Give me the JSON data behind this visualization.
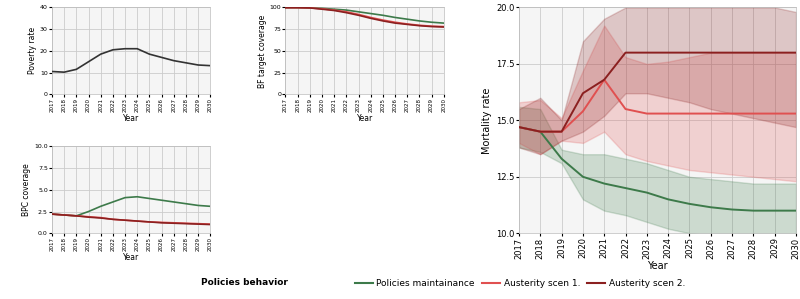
{
  "years": [
    2017,
    2018,
    2019,
    2020,
    2021,
    2022,
    2023,
    2024,
    2025,
    2026,
    2027,
    2028,
    2029,
    2030
  ],
  "poverty_rate": [
    10.5,
    10.2,
    11.5,
    15.0,
    18.5,
    20.5,
    21.0,
    21.0,
    18.5,
    17.0,
    15.5,
    14.5,
    13.5,
    13.2
  ],
  "bf_coverage_green": [
    99.8,
    99.8,
    99.5,
    99.0,
    98.0,
    97.0,
    95.0,
    93.0,
    91.0,
    88.5,
    86.5,
    84.5,
    83.0,
    82.0
  ],
  "bf_coverage_red1": [
    99.8,
    99.8,
    99.5,
    98.5,
    97.0,
    95.0,
    92.0,
    88.5,
    85.5,
    83.0,
    81.0,
    79.5,
    78.5,
    78.0
  ],
  "bf_coverage_red2": [
    99.8,
    99.8,
    99.5,
    98.0,
    96.5,
    94.0,
    91.0,
    87.5,
    84.5,
    82.0,
    80.5,
    79.0,
    78.0,
    77.5
  ],
  "bpc_green": [
    2.2,
    2.1,
    2.0,
    2.5,
    3.1,
    3.6,
    4.1,
    4.2,
    4.0,
    3.8,
    3.6,
    3.4,
    3.2,
    3.1
  ],
  "bpc_red1": [
    2.2,
    2.1,
    2.0,
    1.9,
    1.8,
    1.6,
    1.5,
    1.4,
    1.3,
    1.25,
    1.2,
    1.15,
    1.1,
    1.05
  ],
  "bpc_red2": [
    2.2,
    2.1,
    2.0,
    1.85,
    1.75,
    1.6,
    1.5,
    1.4,
    1.3,
    1.2,
    1.15,
    1.1,
    1.05,
    1.0
  ],
  "mort_green_mean": [
    14.7,
    14.5,
    13.3,
    12.5,
    12.2,
    12.0,
    11.8,
    11.5,
    11.3,
    11.15,
    11.05,
    11.0,
    11.0,
    11.0
  ],
  "mort_green_lo": [
    13.8,
    13.6,
    13.1,
    11.5,
    11.0,
    10.8,
    10.5,
    10.2,
    10.0,
    9.9,
    9.8,
    9.7,
    9.6,
    9.5
  ],
  "mort_green_hi": [
    15.6,
    15.5,
    13.7,
    13.5,
    13.5,
    13.3,
    13.1,
    12.8,
    12.5,
    12.4,
    12.3,
    12.2,
    12.2,
    12.2
  ],
  "mort_red1_mean": [
    14.7,
    14.5,
    14.5,
    15.4,
    16.8,
    15.5,
    15.3,
    15.3,
    15.3,
    15.3,
    15.3,
    15.3,
    15.3,
    15.3
  ],
  "mort_red1_lo": [
    14.0,
    13.5,
    14.1,
    14.0,
    14.5,
    13.5,
    13.2,
    13.0,
    12.8,
    12.7,
    12.6,
    12.5,
    12.4,
    12.3
  ],
  "mort_red1_hi": [
    15.8,
    15.9,
    15.1,
    17.2,
    19.2,
    17.8,
    17.5,
    17.6,
    17.8,
    18.0,
    18.0,
    18.0,
    18.0,
    18.0
  ],
  "mort_red2_mean": [
    14.7,
    14.5,
    14.5,
    16.2,
    16.8,
    18.0,
    18.0,
    18.0,
    18.0,
    18.0,
    18.0,
    18.0,
    18.0,
    18.0
  ],
  "mort_red2_lo": [
    13.8,
    13.5,
    14.1,
    14.5,
    15.2,
    16.2,
    16.2,
    16.0,
    15.8,
    15.5,
    15.3,
    15.1,
    14.9,
    14.7
  ],
  "mort_red2_hi": [
    15.5,
    16.0,
    15.0,
    18.5,
    19.5,
    20.0,
    20.0,
    20.0,
    20.0,
    20.0,
    20.0,
    20.0,
    20.0,
    19.8
  ],
  "color_green": "#3d7a4a",
  "color_red1": "#e05050",
  "color_red2": "#8b2020",
  "bg_color": "#f5f5f5",
  "grid_color": "#cccccc",
  "text_color": "#333333",
  "legend_label_main": "Policies behavior",
  "legend_green": "Policies maintainance",
  "legend_red1": "Austerity scen 1.",
  "legend_red2": "Austerity scen 2."
}
